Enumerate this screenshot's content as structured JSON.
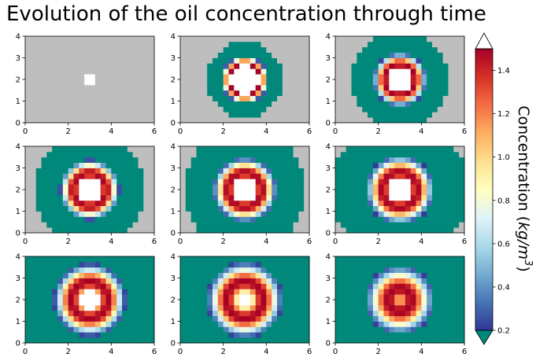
{
  "title": "Evolution of the oil concentration through time",
  "chart_data": {
    "type": "heatmap",
    "title": "Evolution of the oil concentration through time",
    "grid": false,
    "layout": "3x3 panels",
    "xlim": [
      0,
      6
    ],
    "ylim": [
      0,
      4
    ],
    "xticks": [
      "0",
      "2",
      "4",
      "6"
    ],
    "yticks": [
      "0",
      "1",
      "2",
      "3",
      "4"
    ],
    "colormap": "RdYlBu_r",
    "over_color": "#ffffff",
    "under_color": "#00897b",
    "masked_color": "#bebebe",
    "colorbar": {
      "label": "Concentration (kg/m³)",
      "label_prefix": "Concentration (",
      "label_unit": "kg/m",
      "label_exp": "3",
      "label_suffix": ")",
      "min": 0.2,
      "max": 1.5,
      "ticks": [
        "0.2",
        "0.4",
        "0.6",
        "0.8",
        "1.0",
        "1.2",
        "1.4"
      ],
      "extend": "both"
    },
    "panels": [
      {
        "time_step": 1,
        "center": [
          3,
          2
        ],
        "saturated_radius": 0.35,
        "peak_radius": 0.35,
        "ring_width": 0.0,
        "shadow_radius": 0.35
      },
      {
        "time_step": 2,
        "center": [
          3,
          2
        ],
        "saturated_radius": 0.65,
        "peak_radius": 0.75,
        "ring_width": 0.25,
        "shadow_radius": 1.75
      },
      {
        "time_step": 3,
        "center": [
          3,
          2
        ],
        "saturated_radius": 0.55,
        "peak_radius": 0.72,
        "ring_width": 0.38,
        "shadow_radius": 2.25
      },
      {
        "time_step": 4,
        "center": [
          3,
          2
        ],
        "saturated_radius": 0.55,
        "peak_radius": 0.78,
        "ring_width": 0.45,
        "shadow_radius": 2.55
      },
      {
        "time_step": 5,
        "center": [
          3,
          2
        ],
        "saturated_radius": 0.55,
        "peak_radius": 0.8,
        "ring_width": 0.5,
        "shadow_radius": 2.85
      },
      {
        "time_step": 6,
        "center": [
          3,
          2
        ],
        "saturated_radius": 0.55,
        "peak_radius": 0.82,
        "ring_width": 0.55,
        "shadow_radius": 3.2
      },
      {
        "time_step": 7,
        "center": [
          3,
          2
        ],
        "saturated_radius": 0.45,
        "peak_radius": 0.85,
        "ring_width": 0.6,
        "shadow_radius": 3.5
      },
      {
        "time_step": 8,
        "center": [
          3,
          2
        ],
        "saturated_radius": 0.3,
        "peak_radius": 0.85,
        "ring_width": 0.65,
        "shadow_radius": 3.8
      },
      {
        "time_step": 9,
        "center": [
          3,
          2
        ],
        "saturated_radius": 0.1,
        "peak_radius": 0.55,
        "ring_width": 0.75,
        "shadow_radius": 4.2
      }
    ]
  }
}
